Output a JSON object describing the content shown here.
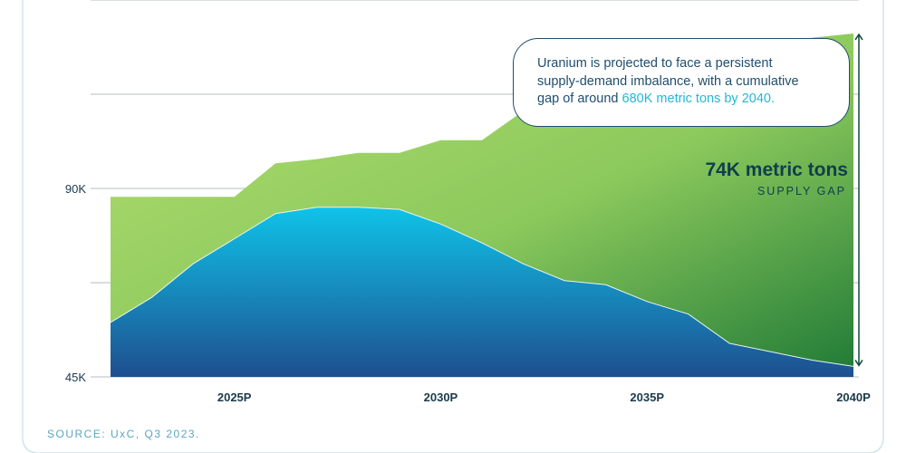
{
  "chart_data": {
    "type": "area",
    "ytick_labels": [
      "45K",
      "90K"
    ],
    "ylim": [
      45000,
      135000
    ],
    "grid": "horizontal",
    "x": [
      2022,
      2023,
      2024,
      2025,
      2026,
      2027,
      2028,
      2029,
      2030,
      2031,
      2032,
      2033,
      2034,
      2035,
      2036,
      2037,
      2038,
      2039,
      2040
    ],
    "xtick_labels": [
      "2025P",
      "2030P",
      "2035P",
      "2040P"
    ],
    "xtick_values": [
      2025,
      2030,
      2035,
      2040
    ],
    "series": [
      {
        "role": "demand",
        "values": [
          88000,
          88000,
          88000,
          88000,
          96000,
          97000,
          98500,
          98500,
          101500,
          101500,
          108500,
          110500,
          112000,
          115000,
          117000,
          120000,
          123000,
          126000,
          127000
        ],
        "color": "#a8d86a"
      },
      {
        "role": "supply",
        "values": [
          58000,
          64000,
          72000,
          78000,
          84000,
          85500,
          85500,
          85000,
          81500,
          77000,
          72000,
          68000,
          67000,
          63000,
          60000,
          53000,
          51000,
          49000,
          47500
        ],
        "colors": [
          "#0fc3e8",
          "#1e4f8f"
        ]
      }
    ],
    "annotations": {
      "gap_value": "74K metric tons",
      "gap_label": "SUPPLY GAP"
    }
  },
  "callout": {
    "line1": "Uranium is projected to face a persistent",
    "line2": "supply-demand imbalance, with a cumulative",
    "line3_prefix": "gap of around ",
    "line3_highlight": "680K metric tons by 2040."
  },
  "source": "SOURCE: UxC, Q3 2023.",
  "colors": {
    "frame": "#cfe6ec",
    "axis_text": "#1b3a4b",
    "arrow": "#0e4a3c"
  }
}
